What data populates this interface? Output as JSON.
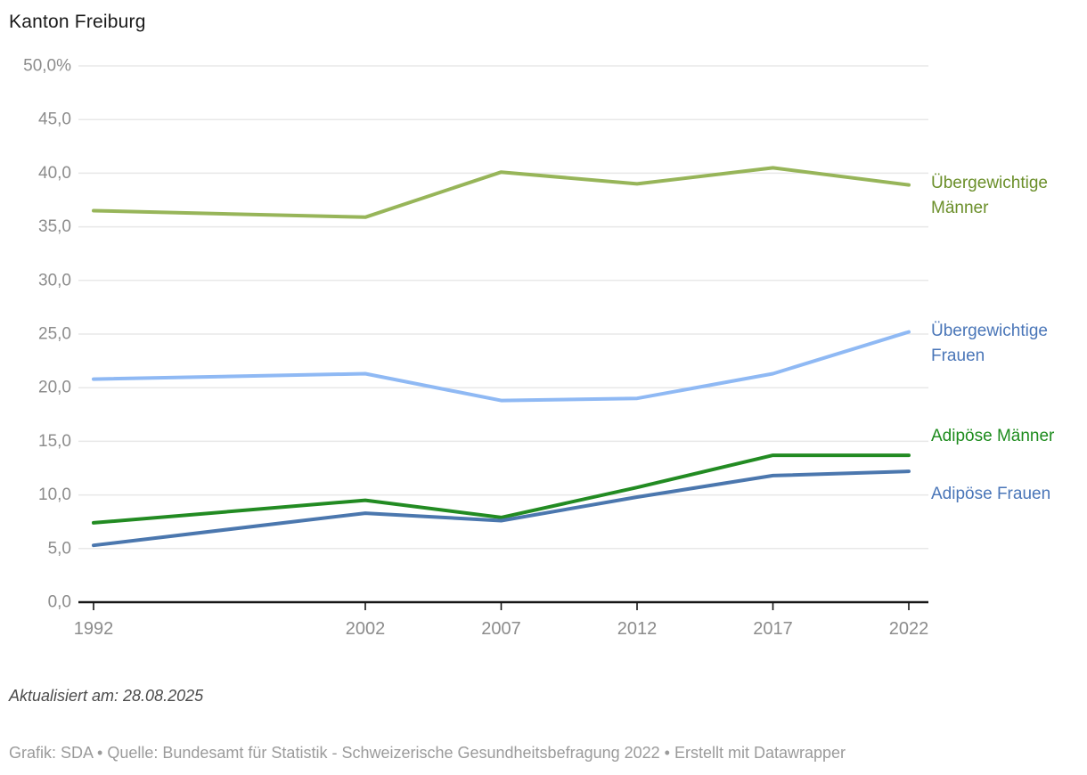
{
  "title": "Kanton Freiburg",
  "footer": {
    "updated": "Aktualisiert am: 28.08.2025",
    "attribution": "Grafik: SDA • Quelle: Bundesamt für Statistik - Schweizerische Gesundheitsbefragung 2022 • Erstellt mit Datawrapper"
  },
  "chart_data": {
    "type": "line",
    "x": [
      1992,
      2002,
      2007,
      2012,
      2017,
      2022
    ],
    "x_tick_labels": [
      "1992",
      "2002",
      "2007",
      "2012",
      "2017",
      "2022"
    ],
    "y_ticks": [
      50,
      45,
      40,
      35,
      30,
      25,
      20,
      15,
      10,
      5,
      0
    ],
    "y_tick_labels": [
      "50,0%",
      "45,0",
      "40,0",
      "35,0",
      "30,0",
      "25,0",
      "20,0",
      "15,0",
      "10,0",
      "5,0",
      "0,0"
    ],
    "ylim": [
      0,
      50
    ],
    "xlim": [
      1992,
      2022
    ],
    "grid": "horizontal",
    "legend_position": "direct-labels-right",
    "axis_label_color": "#8c8c8c",
    "gridline_color": "#e8e8e8",
    "baseline_color": "#161616",
    "series": [
      {
        "name": "Übergewichtige Männer",
        "line_color": "#97b559",
        "label_color": "#6b8f2a",
        "values": [
          36.5,
          35.9,
          40.1,
          39.0,
          40.5,
          38.9
        ]
      },
      {
        "name": "Übergewichtige Frauen",
        "line_color": "#8fb9f4",
        "label_color": "#4a76b8",
        "values": [
          20.8,
          21.3,
          18.8,
          19.0,
          21.3,
          25.2
        ]
      },
      {
        "name": "Adipöse Männer",
        "line_color": "#228b22",
        "label_color": "#1e8c1e",
        "values": [
          7.4,
          9.5,
          7.9,
          10.7,
          13.7,
          13.7
        ]
      },
      {
        "name": "Adipöse Frauen",
        "line_color": "#4b77ae",
        "label_color": "#4a76b8",
        "values": [
          5.3,
          8.3,
          7.6,
          9.8,
          11.8,
          12.2
        ]
      }
    ]
  }
}
